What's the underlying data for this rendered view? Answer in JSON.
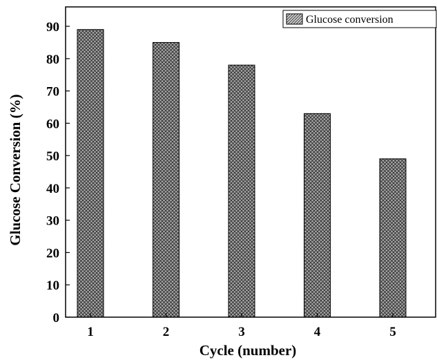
{
  "chart_data": {
    "type": "bar",
    "categories": [
      "1",
      "2",
      "3",
      "4",
      "5"
    ],
    "series": [
      {
        "name": "Glucose conversion",
        "values": [
          89,
          85,
          78,
          63,
          49
        ]
      }
    ],
    "xlabel": "Cycle (number)",
    "ylabel": "Glucose Conversion (%)",
    "ylim": [
      0,
      96
    ],
    "yticks": [
      "0",
      "10",
      "20",
      "30",
      "40",
      "50",
      "60",
      "70",
      "80",
      "90"
    ],
    "grid": false,
    "legend_position": "top-right",
    "bar_fill": "crosshatch",
    "bar_color": "#9a9a9a"
  }
}
